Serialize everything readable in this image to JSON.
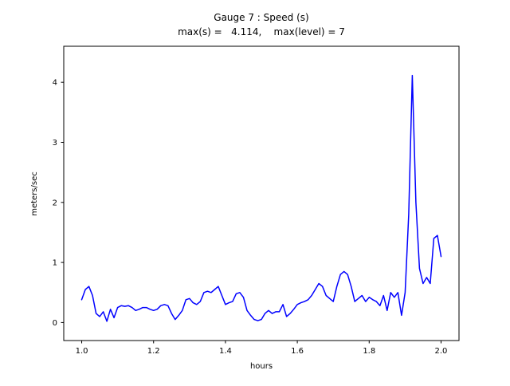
{
  "chart_data": {
    "type": "line",
    "title": "Gauge 7 : Speed (s)",
    "subtitle": "max(s) =   4.114,    max(level) = 7",
    "xlabel": "hours",
    "ylabel": "meters/sec",
    "line_color": "#0000ff",
    "axes_color": "#000000",
    "background_color": "#ffffff",
    "xlim": [
      0.95,
      2.05
    ],
    "ylim": [
      -0.3,
      4.6
    ],
    "xticks": [
      1.0,
      1.2,
      1.4,
      1.6,
      1.8,
      2.0
    ],
    "xtick_labels": [
      "1.0",
      "1.2",
      "1.4",
      "1.6",
      "1.8",
      "2.0"
    ],
    "yticks": [
      0,
      1,
      2,
      3,
      4
    ],
    "ytick_labels": [
      "0",
      "1",
      "2",
      "3",
      "4"
    ],
    "max_s": 4.114,
    "max_level": 7,
    "series_name": "Speed (s)",
    "x_start": 1.0,
    "x_step": 0.01,
    "y": [
      0.38,
      0.55,
      0.6,
      0.45,
      0.15,
      0.1,
      0.18,
      0.02,
      0.22,
      0.08,
      0.25,
      0.28,
      0.27,
      0.28,
      0.25,
      0.2,
      0.22,
      0.25,
      0.25,
      0.22,
      0.2,
      0.22,
      0.28,
      0.3,
      0.28,
      0.15,
      0.05,
      0.12,
      0.2,
      0.38,
      0.4,
      0.33,
      0.3,
      0.35,
      0.5,
      0.52,
      0.5,
      0.55,
      0.6,
      0.45,
      0.3,
      0.33,
      0.35,
      0.48,
      0.5,
      0.42,
      0.2,
      0.12,
      0.05,
      0.03,
      0.05,
      0.15,
      0.2,
      0.15,
      0.18,
      0.18,
      0.3,
      0.1,
      0.15,
      0.22,
      0.3,
      0.33,
      0.35,
      0.38,
      0.45,
      0.55,
      0.65,
      0.6,
      0.45,
      0.4,
      0.35,
      0.6,
      0.8,
      0.85,
      0.8,
      0.6,
      0.35,
      0.4,
      0.45,
      0.35,
      0.42,
      0.38,
      0.35,
      0.28,
      0.45,
      0.2,
      0.5,
      0.42,
      0.5,
      0.12,
      0.5,
      1.8,
      4.114,
      2.0,
      0.9,
      0.65,
      0.75,
      0.65,
      1.4,
      1.45,
      1.1
    ]
  }
}
